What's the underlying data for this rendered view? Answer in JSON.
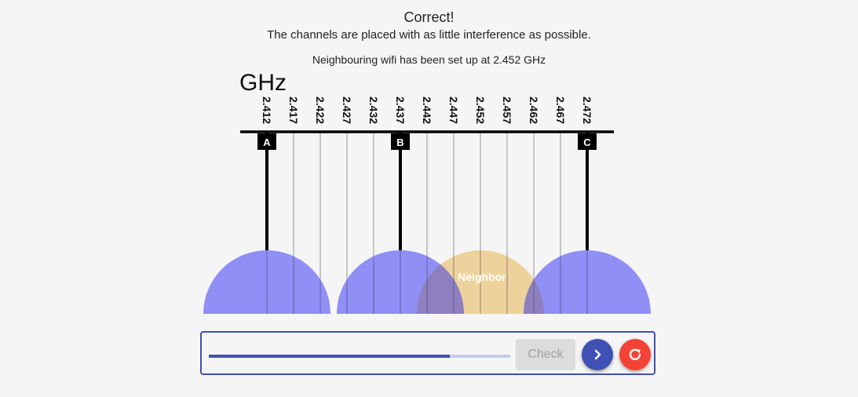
{
  "feedback": {
    "title": "Correct!",
    "message": "The channels are placed with as little interference as possible."
  },
  "neighbour_info": "Neighbouring wifi has been set up at 2.452 GHz",
  "diagram": {
    "unit": "GHz",
    "frequencies": [
      "2.412",
      "2.417",
      "2.422",
      "2.427",
      "2.432",
      "2.437",
      "2.442",
      "2.447",
      "2.452",
      "2.457",
      "2.462",
      "2.467",
      "2.472"
    ],
    "channels": [
      {
        "letter": "A",
        "frequency": "2.412"
      },
      {
        "letter": "B",
        "frequency": "2.437"
      },
      {
        "letter": "C",
        "frequency": "2.472"
      }
    ],
    "neighbor": {
      "label": "Neighbor",
      "frequency": "2.452"
    },
    "colors": {
      "channel_fill": "#8f8ff5",
      "neighbor_fill": "#edd39b",
      "overlap_fill": "#8e7fbf"
    }
  },
  "controls": {
    "progress": 0.8,
    "check_label": "Check",
    "next_icon": "chevron-right-icon",
    "reset_icon": "refresh-icon",
    "colors": {
      "primary": "#3f51b5",
      "reset": "#f44336"
    }
  }
}
